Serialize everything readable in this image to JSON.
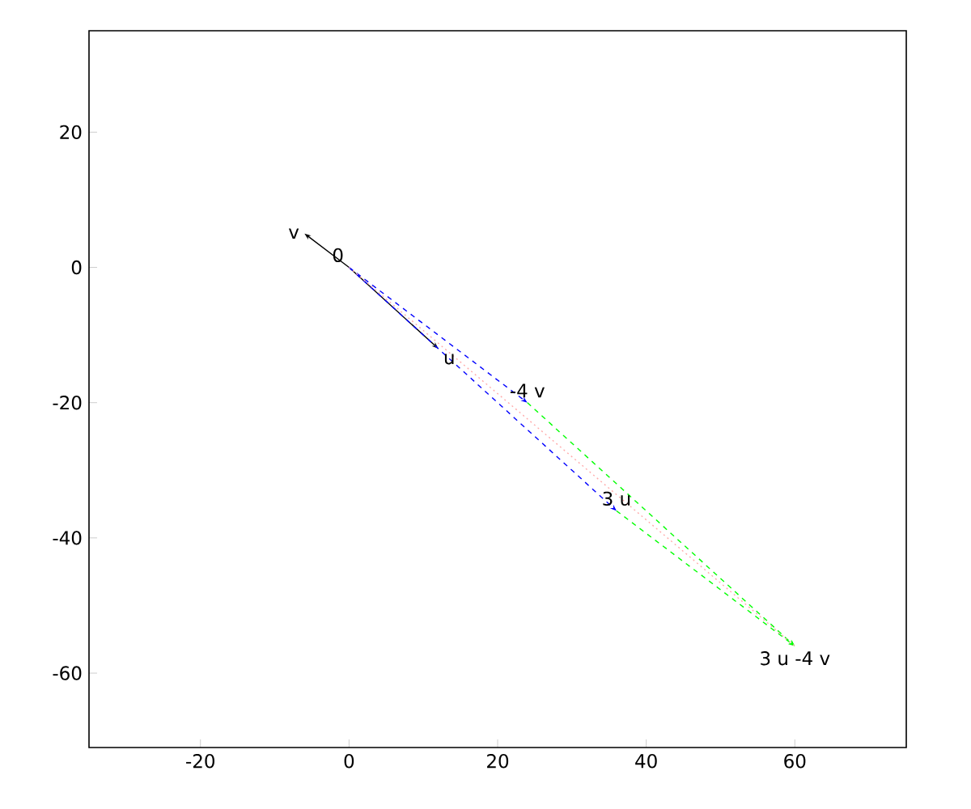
{
  "chart_data": {
    "type": "line",
    "xlim": [
      -35,
      75
    ],
    "ylim": [
      -71,
      35
    ],
    "xticks": [
      -20,
      0,
      20,
      40,
      60
    ],
    "yticks": [
      -60,
      -40,
      -20,
      0,
      20
    ],
    "grid": false,
    "series": [
      {
        "x": [
          -6,
          0,
          12
        ],
        "values": [
          5,
          0,
          -12
        ],
        "color": "#000000",
        "line_style": "solid"
      },
      {
        "x": [
          0,
          36
        ],
        "values": [
          0,
          -36
        ],
        "color": "#0000ff",
        "line_style": "dashed"
      },
      {
        "x": [
          0,
          24
        ],
        "values": [
          0,
          -20
        ],
        "color": "#0000ff",
        "line_style": "dashed"
      },
      {
        "x": [
          36,
          60
        ],
        "values": [
          -36,
          -56
        ],
        "color": "#00ff00",
        "line_style": "dashed"
      },
      {
        "x": [
          24,
          60
        ],
        "values": [
          -20,
          -56
        ],
        "color": "#00ff00",
        "line_style": "dashed"
      },
      {
        "x": [
          0,
          60
        ],
        "values": [
          0,
          -56
        ],
        "color": "#ffaaaa",
        "line_style": "dotted"
      }
    ],
    "annotations": [
      {
        "text": "v",
        "x": -6,
        "y": 5
      },
      {
        "text": "0",
        "x": 0,
        "y": 0
      },
      {
        "text": "u",
        "x": 12,
        "y": -12
      },
      {
        "text": "-4 v",
        "x": 24,
        "y": -20
      },
      {
        "text": "3 u",
        "x": 36,
        "y": -36
      },
      {
        "text": "3 u -4 v",
        "x": 60,
        "y": -56
      }
    ]
  }
}
